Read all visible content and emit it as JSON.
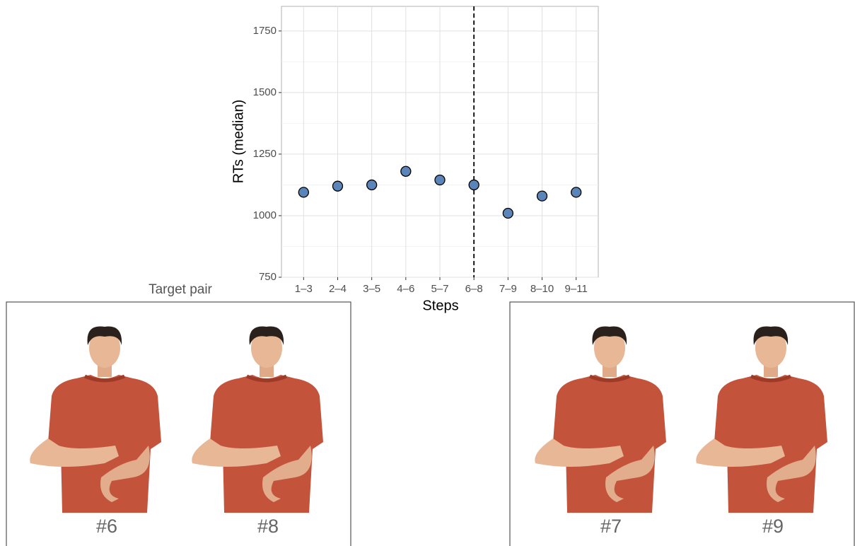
{
  "chart_data": {
    "type": "scatter",
    "x_label": "Steps",
    "y_label": "RTs (median)",
    "categories": [
      "1–3",
      "2–4",
      "3–5",
      "4–6",
      "5–7",
      "6–8",
      "7–9",
      "8–10",
      "9–11"
    ],
    "values": [
      1095,
      1120,
      1125,
      1180,
      1145,
      1125,
      1010,
      1080,
      1095
    ],
    "color": "#5b84b8",
    "ylim": [
      750,
      1850
    ],
    "yticks": [
      750,
      1000,
      1250,
      1500,
      1750
    ],
    "grid": true,
    "minor_grid": true,
    "vline": "6–8"
  },
  "panels": [
    {
      "title": "Target pair",
      "labels": [
        "#6",
        "#8"
      ]
    },
    {
      "labels": [
        "#7",
        "#9"
      ]
    }
  ]
}
